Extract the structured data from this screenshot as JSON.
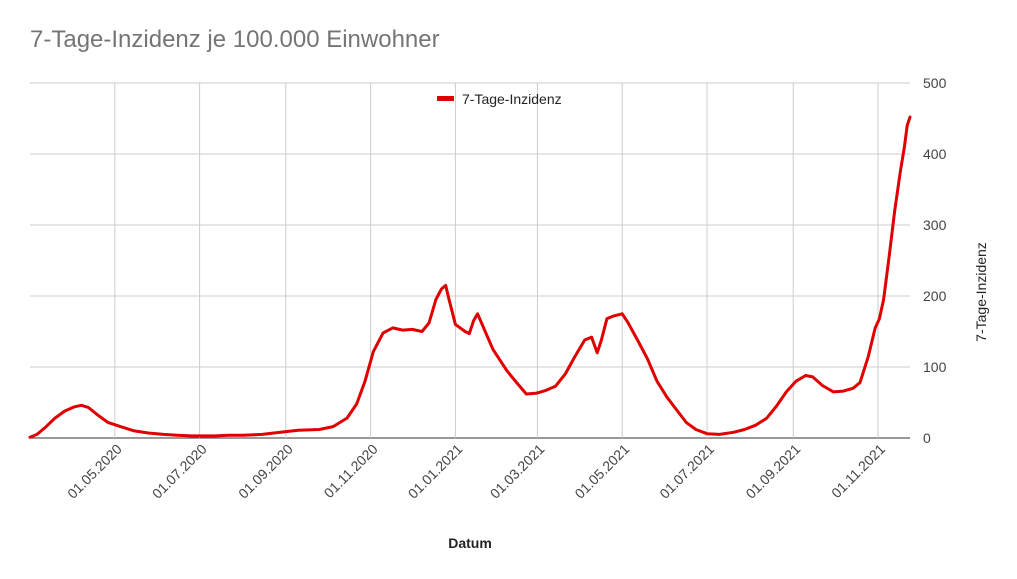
{
  "chart_data": {
    "type": "line",
    "title": "7-Tage-Inzidenz je 100.000 Einwohner",
    "xlabel": "Datum",
    "ylabel": "7-Tage-Inzidenz",
    "ylim": [
      0,
      500
    ],
    "yticks": [
      "0",
      "100",
      "200",
      "300",
      "400",
      "500"
    ],
    "xticks": [
      "01.05.2020",
      "01.07.2020",
      "01.09.2020",
      "01.11.2020",
      "01.01.2021",
      "01.03.2021",
      "01.05.2021",
      "01.07.2021",
      "01.09.2021",
      "01.11.2021"
    ],
    "xlim": [
      "2020-03-01",
      "2021-11-24"
    ],
    "grid": true,
    "legend_position": "top",
    "series": [
      {
        "name": "7-Tage-Inzidenz",
        "color": "#e00000",
        "points": [
          [
            "2020-03-01",
            1
          ],
          [
            "2020-03-06",
            5
          ],
          [
            "2020-03-12",
            15
          ],
          [
            "2020-03-19",
            28
          ],
          [
            "2020-03-26",
            38
          ],
          [
            "2020-04-02",
            44
          ],
          [
            "2020-04-07",
            46
          ],
          [
            "2020-04-12",
            43
          ],
          [
            "2020-04-19",
            32
          ],
          [
            "2020-04-26",
            22
          ],
          [
            "2020-05-05",
            16
          ],
          [
            "2020-05-15",
            10
          ],
          [
            "2020-05-25",
            7
          ],
          [
            "2020-06-05",
            5
          ],
          [
            "2020-06-15",
            4
          ],
          [
            "2020-06-25",
            3
          ],
          [
            "2020-07-05",
            3
          ],
          [
            "2020-07-12",
            3
          ],
          [
            "2020-07-22",
            4
          ],
          [
            "2020-08-01",
            4
          ],
          [
            "2020-08-15",
            5
          ],
          [
            "2020-09-01",
            9
          ],
          [
            "2020-09-10",
            11
          ],
          [
            "2020-09-25",
            12
          ],
          [
            "2020-10-05",
            16
          ],
          [
            "2020-10-15",
            28
          ],
          [
            "2020-10-22",
            48
          ],
          [
            "2020-10-28",
            80
          ],
          [
            "2020-11-03",
            122
          ],
          [
            "2020-11-10",
            148
          ],
          [
            "2020-11-17",
            155
          ],
          [
            "2020-11-24",
            152
          ],
          [
            "2020-12-01",
            153
          ],
          [
            "2020-12-08",
            150
          ],
          [
            "2020-12-13",
            162
          ],
          [
            "2020-12-18",
            195
          ],
          [
            "2020-12-22",
            210
          ],
          [
            "2020-12-25",
            215
          ],
          [
            "2020-12-27",
            198
          ],
          [
            "2021-01-01",
            160
          ],
          [
            "2021-01-08",
            150
          ],
          [
            "2021-01-11",
            147
          ],
          [
            "2021-01-14",
            165
          ],
          [
            "2021-01-17",
            175
          ],
          [
            "2021-01-22",
            152
          ],
          [
            "2021-01-28",
            125
          ],
          [
            "2021-02-07",
            95
          ],
          [
            "2021-02-14",
            78
          ],
          [
            "2021-02-21",
            62
          ],
          [
            "2021-02-28",
            63
          ],
          [
            "2021-03-07",
            67
          ],
          [
            "2021-03-14",
            73
          ],
          [
            "2021-03-21",
            90
          ],
          [
            "2021-03-28",
            115
          ],
          [
            "2021-04-04",
            138
          ],
          [
            "2021-04-09",
            142
          ],
          [
            "2021-04-13",
            120
          ],
          [
            "2021-04-16",
            138
          ],
          [
            "2021-04-20",
            168
          ],
          [
            "2021-04-25",
            172
          ],
          [
            "2021-05-01",
            175
          ],
          [
            "2021-05-05",
            163
          ],
          [
            "2021-05-12",
            138
          ],
          [
            "2021-05-19",
            112
          ],
          [
            "2021-05-26",
            80
          ],
          [
            "2021-06-02",
            58
          ],
          [
            "2021-06-09",
            40
          ],
          [
            "2021-06-16",
            22
          ],
          [
            "2021-06-23",
            12
          ],
          [
            "2021-07-01",
            6
          ],
          [
            "2021-07-10",
            5
          ],
          [
            "2021-07-20",
            8
          ],
          [
            "2021-07-28",
            12
          ],
          [
            "2021-08-05",
            18
          ],
          [
            "2021-08-13",
            28
          ],
          [
            "2021-08-20",
            45
          ],
          [
            "2021-08-27",
            65
          ],
          [
            "2021-09-03",
            80
          ],
          [
            "2021-09-10",
            88
          ],
          [
            "2021-09-15",
            86
          ],
          [
            "2021-09-22",
            74
          ],
          [
            "2021-09-30",
            65
          ],
          [
            "2021-10-07",
            66
          ],
          [
            "2021-10-14",
            70
          ],
          [
            "2021-10-19",
            78
          ],
          [
            "2021-10-25",
            115
          ],
          [
            "2021-10-30",
            155
          ],
          [
            "2021-11-02",
            168
          ],
          [
            "2021-11-05",
            195
          ],
          [
            "2021-11-09",
            255
          ],
          [
            "2021-11-13",
            320
          ],
          [
            "2021-11-17",
            375
          ],
          [
            "2021-11-20",
            410
          ],
          [
            "2021-11-22",
            440
          ],
          [
            "2021-11-24",
            452
          ]
        ]
      }
    ]
  }
}
